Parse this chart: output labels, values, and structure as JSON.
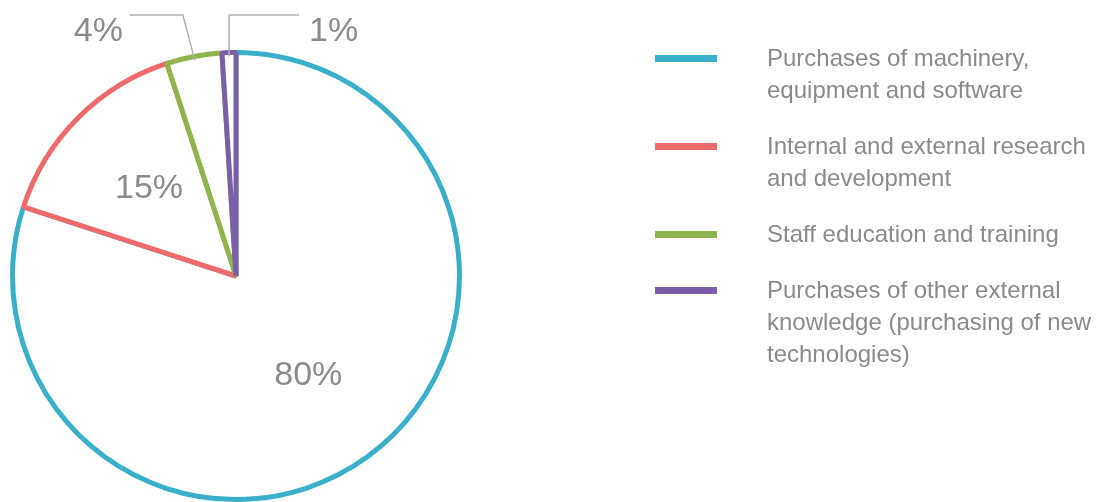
{
  "chart_data": {
    "type": "pie",
    "categories": [
      "Purchases of machinery, equipment and software",
      "Internal and external research and development",
      "Staff education and training",
      "Purchases of other external knowledge (purchasing of new technologies)"
    ],
    "values": [
      80,
      15,
      4,
      1
    ],
    "value_labels": [
      "80%",
      "15%",
      "4%",
      "1%"
    ],
    "colors": [
      "#3aafc9",
      "#ef6a6a",
      "#8db54b",
      "#7b5ea8"
    ],
    "legend": "right"
  }
}
